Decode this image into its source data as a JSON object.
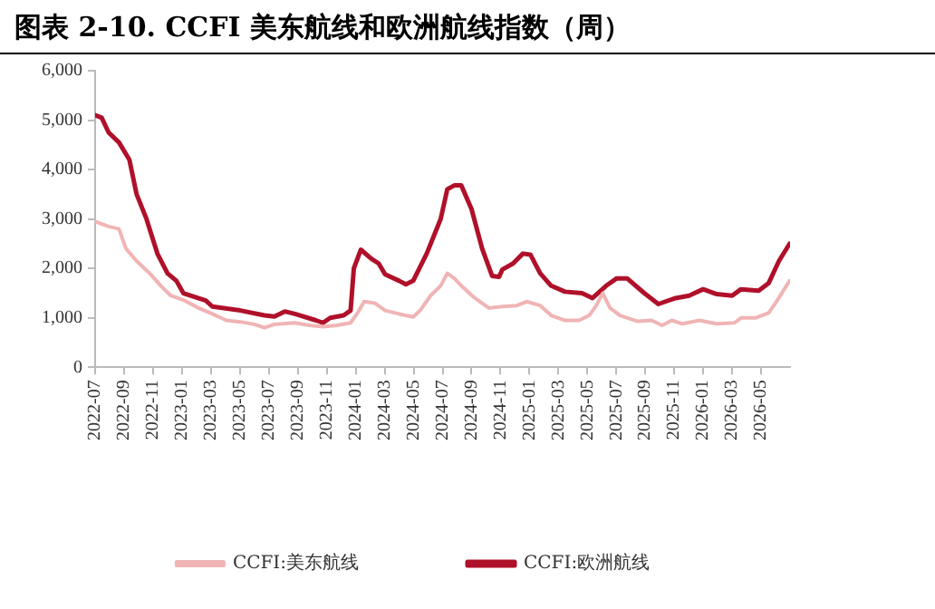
{
  "chart_data": {
    "type": "line",
    "title": "图表 2-10. CCFI 美东航线和欧洲航线指数（周）",
    "series": [
      {
        "name": "CCFI:美东航线",
        "color": "#f0b4b4",
        "x": [
          "2022-07-01",
          "2022-07-30",
          "2022-08-21",
          "2022-09-05",
          "2022-09-27",
          "2022-10-25",
          "2022-11-17",
          "2022-12-08",
          "2023-01-07",
          "2023-02-05",
          "2023-03-04",
          "2023-04-03",
          "2023-05-02",
          "2023-06-01",
          "2023-06-22",
          "2023-07-13",
          "2023-08-26",
          "2023-09-25",
          "2023-10-24",
          "2023-11-22",
          "2023-12-21",
          "2024-01-05",
          "2024-01-19",
          "2024-02-10",
          "2024-03-02",
          "2024-04-01",
          "2024-04-30",
          "2024-05-15",
          "2024-06-06",
          "2024-06-27",
          "2024-07-11",
          "2024-07-26",
          "2024-08-10",
          "2024-09-08",
          "2024-10-07",
          "2024-11-05",
          "2024-12-05",
          "2024-12-26",
          "2025-01-24",
          "2025-02-15",
          "2025-03-15",
          "2025-04-14",
          "2025-05-05",
          "2025-05-20",
          "2025-06-03",
          "2025-06-18",
          "2025-07-09",
          "2025-08-16",
          "2025-09-14",
          "2025-10-06",
          "2025-10-27",
          "2025-11-18",
          "2025-12-24",
          "2026-01-30",
          "2026-03-06",
          "2026-03-20",
          "2026-04-19",
          "2026-05-17",
          "2026-06-01",
          "2026-06-30"
        ],
        "values": [
          2950,
          2850,
          2800,
          2400,
          2150,
          1900,
          1650,
          1450,
          1350,
          1200,
          1080,
          950,
          920,
          870,
          800,
          870,
          900,
          850,
          820,
          850,
          900,
          1100,
          1330,
          1300,
          1150,
          1080,
          1020,
          1150,
          1450,
          1650,
          1900,
          1800,
          1650,
          1400,
          1200,
          1230,
          1250,
          1330,
          1250,
          1050,
          950,
          950,
          1050,
          1250,
          1500,
          1200,
          1050,
          930,
          950,
          850,
          950,
          880,
          950,
          880,
          900,
          1000,
          1000,
          1100,
          1300,
          1750
        ]
      },
      {
        "name": "CCFI:欧洲航线",
        "color": "#b0102a",
        "x": [
          "2022-07-01",
          "2022-07-15",
          "2022-07-30",
          "2022-08-21",
          "2022-09-12",
          "2022-09-27",
          "2022-10-18",
          "2022-11-10",
          "2022-12-01",
          "2022-12-20",
          "2023-01-04",
          "2023-02-19",
          "2023-03-04",
          "2023-05-02",
          "2023-06-22",
          "2023-07-13",
          "2023-08-04",
          "2023-08-26",
          "2023-10-09",
          "2023-10-24",
          "2023-11-08",
          "2023-12-06",
          "2023-12-21",
          "2023-12-28",
          "2024-01-12",
          "2024-02-03",
          "2024-02-18",
          "2024-03-02",
          "2024-04-01",
          "2024-04-15",
          "2024-04-30",
          "2024-05-29",
          "2024-06-27",
          "2024-07-11",
          "2024-07-26",
          "2024-08-10",
          "2024-09-01",
          "2024-09-23",
          "2024-10-14",
          "2024-10-29",
          "2024-11-05",
          "2024-11-27",
          "2024-12-18",
          "2025-01-03",
          "2025-01-24",
          "2025-02-15",
          "2025-03-15",
          "2025-04-20",
          "2025-05-12",
          "2025-06-10",
          "2025-07-02",
          "2025-07-24",
          "2025-08-30",
          "2025-09-28",
          "2025-11-04",
          "2025-12-02",
          "2026-01-01",
          "2026-01-30",
          "2026-03-01",
          "2026-03-20",
          "2026-04-26",
          "2026-05-17",
          "2026-06-08",
          "2026-06-30"
        ],
        "values": [
          5100,
          5050,
          4750,
          4550,
          4200,
          3500,
          3000,
          2300,
          1900,
          1750,
          1500,
          1350,
          1230,
          1150,
          1050,
          1030,
          1130,
          1080,
          950,
          900,
          1000,
          1050,
          1150,
          2000,
          2380,
          2200,
          2100,
          1880,
          1750,
          1680,
          1750,
          2300,
          3000,
          3600,
          3680,
          3680,
          3200,
          2400,
          1850,
          1830,
          1980,
          2100,
          2300,
          2280,
          1900,
          1650,
          1530,
          1500,
          1400,
          1650,
          1800,
          1800,
          1500,
          1280,
          1400,
          1450,
          1580,
          1480,
          1450,
          1580,
          1550,
          1700,
          2150,
          2500
        ]
      }
    ],
    "xlim": [
      "2022-07-01",
      "2026-07-01"
    ],
    "xticks": [
      "2022-07",
      "2022-09",
      "2022-11",
      "2023-01",
      "2023-03",
      "2023-05",
      "2023-07",
      "2023-09",
      "2023-11",
      "2024-01",
      "2024-03",
      "2024-05",
      "2024-07",
      "2024-09",
      "2024-11",
      "2025-01",
      "2025-03",
      "2025-05",
      "2025-07",
      "2025-09",
      "2025-11",
      "2026-01",
      "2026-03",
      "2026-05"
    ],
    "ylim": [
      0,
      6000
    ],
    "yticks": [
      0,
      {
        "value": 1000,
        "label": "1,000"
      },
      {
        "value": 2000,
        "label": "2,000"
      },
      {
        "value": 3000,
        "label": "3,000"
      },
      {
        "value": 4000,
        "label": "4,000"
      },
      {
        "value": 5000,
        "label": "5,000"
      },
      {
        "value": 6000,
        "label": "6,000"
      }
    ],
    "grid": false,
    "legend": "bottom",
    "marker": "none",
    "line_style": "solid"
  }
}
